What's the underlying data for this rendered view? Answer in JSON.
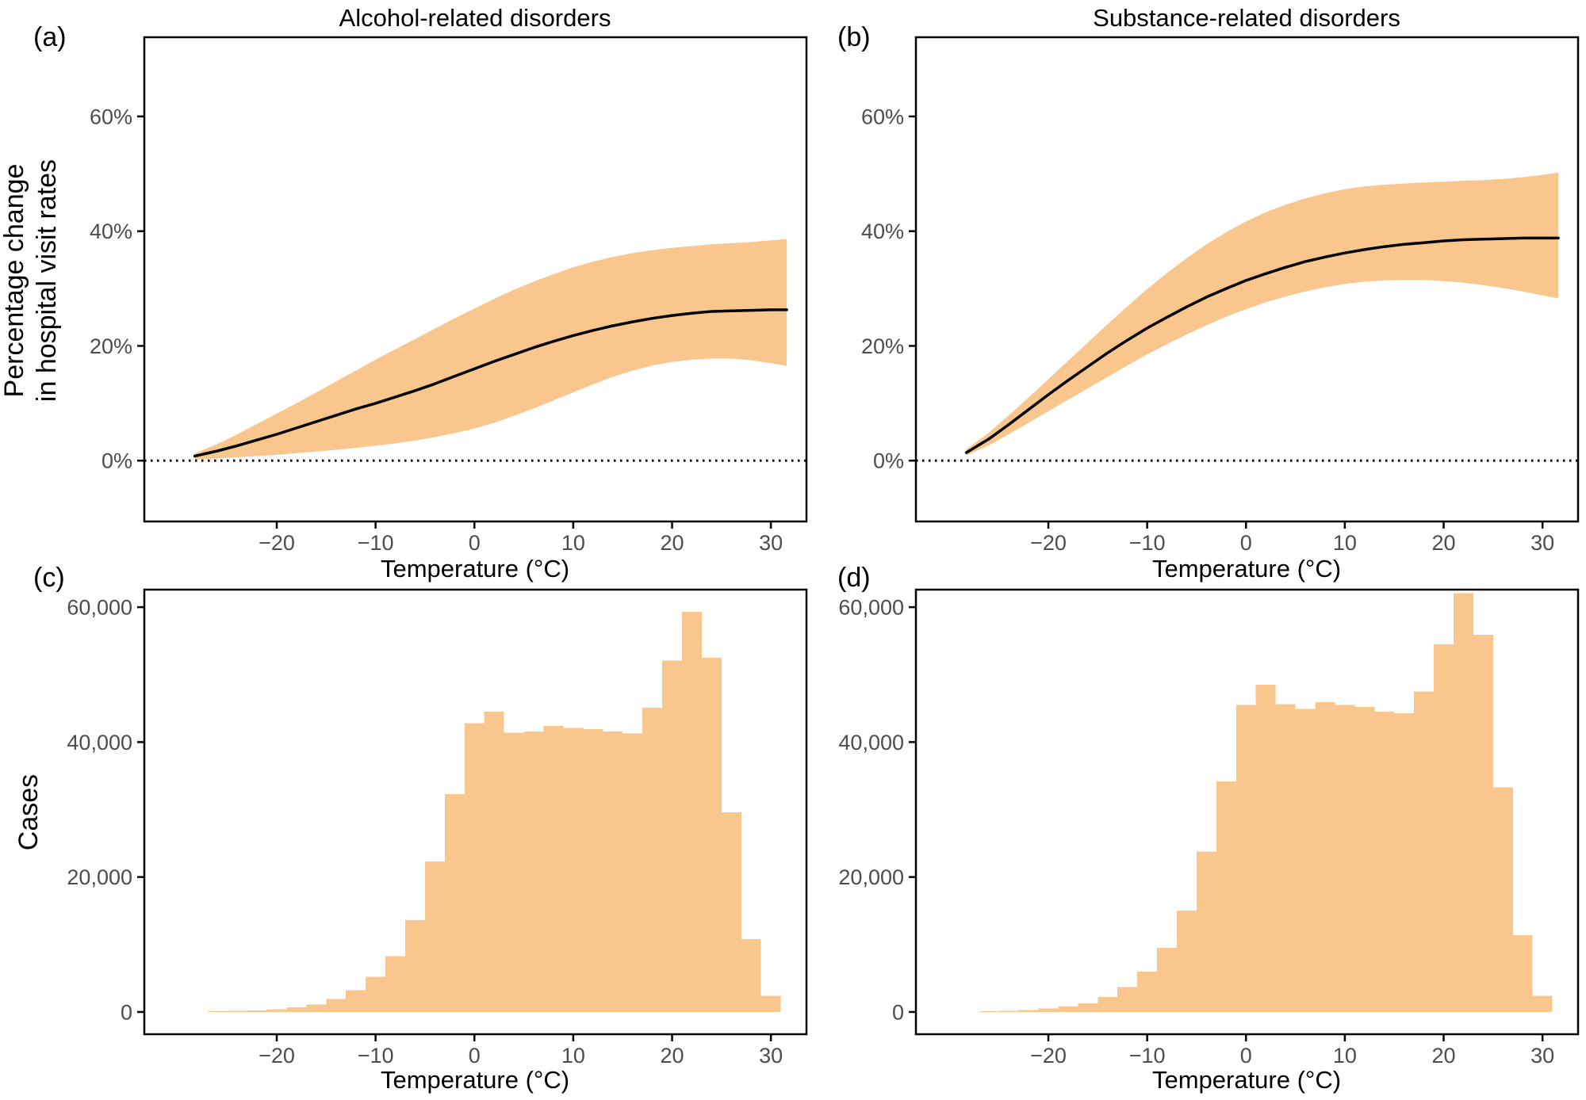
{
  "figure": {
    "panel_letters": {
      "a": "(a)",
      "b": "(b)",
      "c": "(c)",
      "d": "(d)"
    },
    "titles": {
      "a": "Alcohol-related disorders",
      "b": "Substance-related disorders"
    },
    "y_axis_title_top": [
      "Percentage change",
      "in hospital visit rates"
    ],
    "y_axis_title_bottom": "Cases",
    "x_axis_title": "Temperature (°C)"
  },
  "colors": {
    "band": "#F9C78D",
    "bar": "#F9C78D",
    "line": "#000000",
    "border": "#000000",
    "tick_label": "#4D4D4D"
  },
  "chart_data": [
    {
      "id": "a",
      "type": "line",
      "title": "Alcohol-related disorders",
      "panel_label": "(a)",
      "xlabel": "Temperature (°C)",
      "ylabel": "Percentage change in hospital visit rates",
      "xlim": [
        -33.4,
        33.6
      ],
      "ylim": [
        -10.6,
        73.8
      ],
      "x_ticks": [
        -20,
        -10,
        0,
        10,
        20,
        30
      ],
      "x_tick_labels": [
        "−20",
        "−10",
        "0",
        "10",
        "20",
        "30"
      ],
      "y_ticks": [
        0,
        20,
        40,
        60
      ],
      "y_tick_labels": [
        "0%",
        "20%",
        "40%",
        "60%"
      ],
      "zero_reference_line": 0,
      "x": [
        -28.3,
        -26,
        -24,
        -22,
        -20,
        -18,
        -16,
        -14,
        -12,
        -10,
        -8,
        -6,
        -4,
        -2,
        0,
        2,
        4,
        6,
        8,
        10,
        12,
        14,
        16,
        18,
        20,
        22,
        24,
        26,
        28,
        30,
        31.6
      ],
      "y": [
        0.8,
        1.7,
        2.6,
        3.6,
        4.6,
        5.7,
        6.8,
        7.9,
        9.0,
        10.0,
        11.1,
        12.2,
        13.4,
        14.7,
        16.0,
        17.3,
        18.5,
        19.7,
        20.8,
        21.8,
        22.7,
        23.5,
        24.2,
        24.8,
        25.3,
        25.7,
        26.0,
        26.1,
        26.2,
        26.3,
        26.3
      ],
      "upper": [
        1.3,
        2.9,
        4.6,
        6.4,
        8.2,
        10.0,
        11.9,
        13.8,
        15.7,
        17.6,
        19.4,
        21.2,
        23.0,
        24.8,
        26.5,
        28.2,
        29.8,
        31.2,
        32.5,
        33.7,
        34.7,
        35.5,
        36.2,
        36.7,
        37.1,
        37.4,
        37.7,
        37.9,
        38.1,
        38.4,
        38.6
      ],
      "lower": [
        0.2,
        0.4,
        0.6,
        0.8,
        1.0,
        1.3,
        1.6,
        1.9,
        2.2,
        2.6,
        3.0,
        3.5,
        4.1,
        4.8,
        5.6,
        6.6,
        7.8,
        9.1,
        10.5,
        11.9,
        13.3,
        14.6,
        15.7,
        16.6,
        17.2,
        17.6,
        17.8,
        17.8,
        17.5,
        17.0,
        16.5
      ]
    },
    {
      "id": "b",
      "type": "line",
      "title": "Substance-related disorders",
      "panel_label": "(b)",
      "xlabel": "Temperature (°C)",
      "ylabel": "Percentage change in hospital visit rates",
      "xlim": [
        -33.4,
        33.6
      ],
      "ylim": [
        -10.6,
        73.8
      ],
      "x_ticks": [
        -20,
        -10,
        0,
        10,
        20,
        30
      ],
      "x_tick_labels": [
        "−20",
        "−10",
        "0",
        "10",
        "20",
        "30"
      ],
      "y_ticks": [
        0,
        20,
        40,
        60
      ],
      "y_tick_labels": [
        "0%",
        "20%",
        "40%",
        "60%"
      ],
      "zero_reference_line": 0,
      "x": [
        -28.3,
        -26,
        -24,
        -22,
        -20,
        -18,
        -16,
        -14,
        -12,
        -10,
        -8,
        -6,
        -4,
        -2,
        0,
        2,
        4,
        6,
        8,
        10,
        12,
        14,
        16,
        18,
        20,
        22,
        24,
        26,
        28,
        30,
        31.6
      ],
      "y": [
        1.4,
        3.8,
        6.3,
        8.9,
        11.5,
        14.0,
        16.4,
        18.8,
        21.0,
        23.1,
        25.0,
        26.8,
        28.5,
        30.0,
        31.4,
        32.6,
        33.7,
        34.7,
        35.5,
        36.2,
        36.8,
        37.3,
        37.7,
        38.0,
        38.3,
        38.5,
        38.6,
        38.7,
        38.8,
        38.8,
        38.8
      ],
      "upper": [
        2.0,
        4.9,
        7.9,
        11.0,
        14.2,
        17.4,
        20.6,
        23.8,
        26.9,
        29.9,
        32.7,
        35.3,
        37.7,
        39.8,
        41.7,
        43.3,
        44.6,
        45.7,
        46.6,
        47.3,
        47.8,
        48.1,
        48.3,
        48.5,
        48.6,
        48.8,
        48.9,
        49.1,
        49.4,
        49.8,
        50.2
      ],
      "lower": [
        0.9,
        2.7,
        4.6,
        6.6,
        8.6,
        10.6,
        12.6,
        14.6,
        16.6,
        18.5,
        20.3,
        22.0,
        23.6,
        25.1,
        26.4,
        27.6,
        28.6,
        29.5,
        30.2,
        30.8,
        31.2,
        31.4,
        31.5,
        31.5,
        31.3,
        31.0,
        30.6,
        30.1,
        29.5,
        28.8,
        28.3
      ]
    },
    {
      "id": "c",
      "type": "bar",
      "title": "",
      "panel_label": "(c)",
      "xlabel": "Temperature (°C)",
      "ylabel": "Cases",
      "xlim": [
        -33.4,
        33.6
      ],
      "ylim": [
        -3300,
        62600
      ],
      "x_ticks": [
        -20,
        -10,
        0,
        10,
        20,
        30
      ],
      "x_tick_labels": [
        "−20",
        "−10",
        "0",
        "10",
        "20",
        "30"
      ],
      "y_ticks": [
        0,
        20000,
        40000,
        60000
      ],
      "y_tick_labels": [
        "0",
        "20,000",
        "40,000",
        "60,000"
      ],
      "bin_width": 2,
      "categories": [
        -26,
        -24,
        -22,
        -20,
        -18,
        -16,
        -14,
        -12,
        -10,
        -8,
        -6,
        -4,
        -2,
        0,
        2,
        4,
        6,
        8,
        10,
        12,
        14,
        16,
        18,
        20,
        22,
        24,
        26,
        28,
        30
      ],
      "values": [
        100,
        150,
        250,
        420,
        700,
        1100,
        1900,
        3200,
        5200,
        8300,
        13600,
        22300,
        32300,
        42800,
        44500,
        41400,
        41600,
        42400,
        42100,
        41900,
        41600,
        41300,
        45100,
        52100,
        59300,
        52500,
        29600,
        10800,
        2400
      ]
    },
    {
      "id": "d",
      "type": "bar",
      "title": "",
      "panel_label": "(d)",
      "xlabel": "Temperature (°C)",
      "ylabel": "Cases",
      "xlim": [
        -33.4,
        33.6
      ],
      "ylim": [
        -3300,
        62600
      ],
      "x_ticks": [
        -20,
        -10,
        0,
        10,
        20,
        30
      ],
      "x_tick_labels": [
        "−20",
        "−10",
        "0",
        "10",
        "20",
        "30"
      ],
      "y_ticks": [
        0,
        20000,
        40000,
        60000
      ],
      "y_tick_labels": [
        "0",
        "20,000",
        "40,000",
        "60,000"
      ],
      "bin_width": 2,
      "categories": [
        -26,
        -24,
        -22,
        -20,
        -18,
        -16,
        -14,
        -12,
        -10,
        -8,
        -6,
        -4,
        -2,
        0,
        2,
        4,
        6,
        8,
        10,
        12,
        14,
        16,
        18,
        20,
        22,
        24,
        26,
        28,
        30
      ],
      "values": [
        120,
        180,
        300,
        500,
        800,
        1300,
        2200,
        3700,
        6000,
        9500,
        15000,
        23800,
        34200,
        45500,
        48500,
        45600,
        44900,
        45900,
        45500,
        45200,
        44500,
        44300,
        47500,
        54500,
        62100,
        55900,
        33300,
        11400,
        2400
      ]
    }
  ]
}
